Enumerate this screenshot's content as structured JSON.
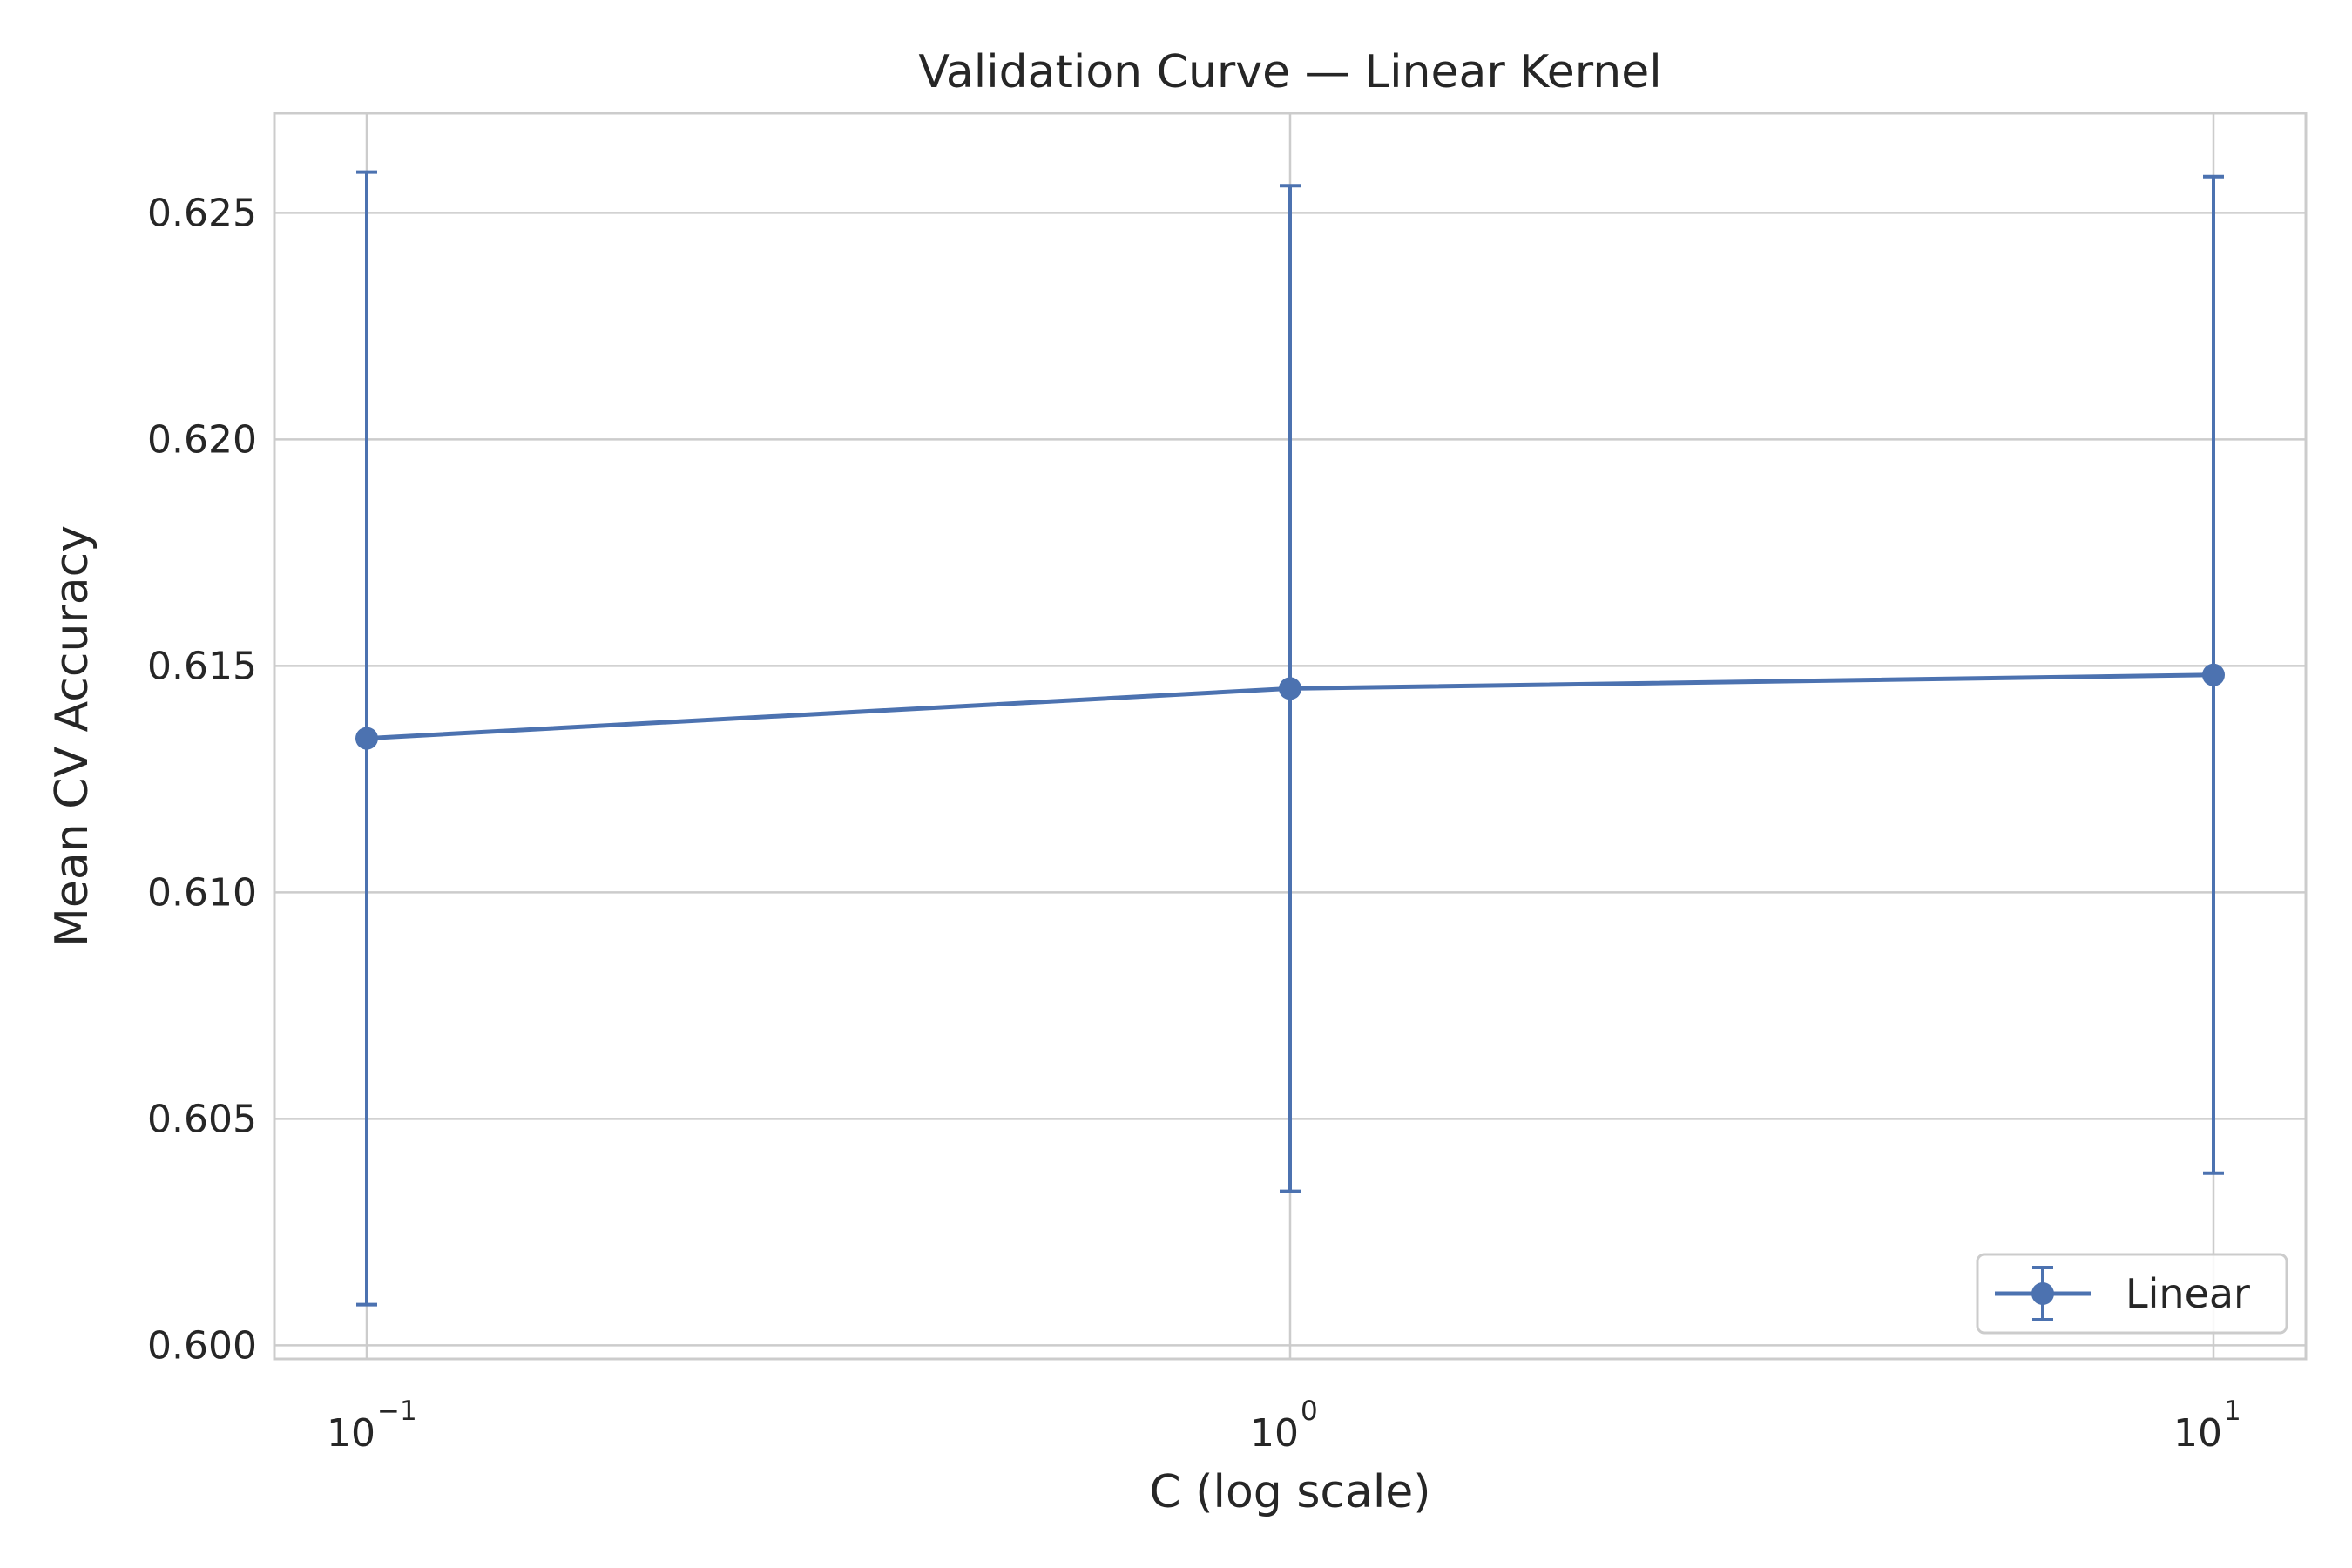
{
  "chart_data": {
    "type": "line",
    "title": "Validation Curve — Linear Kernel",
    "xlabel": "C (log scale)",
    "ylabel": "Mean CV Accuracy",
    "x_scale": "log",
    "x": [
      0.1,
      1,
      10
    ],
    "x_tick_labels": [
      {
        "base": "10",
        "exp": "−1"
      },
      {
        "base": "10",
        "exp": "0"
      },
      {
        "base": "10",
        "exp": "1"
      }
    ],
    "y_ticks": [
      "0.600",
      "0.605",
      "0.610",
      "0.615",
      "0.620",
      "0.625"
    ],
    "ylim": [
      0.5997,
      0.6272
    ],
    "grid": true,
    "legend_position": "lower right",
    "series": [
      {
        "name": "Linear",
        "color": "#4c72b0",
        "marker": "circle",
        "values": [
          0.6134,
          0.6145,
          0.6148
        ],
        "error": [
          0.0125,
          0.0111,
          0.011
        ]
      }
    ]
  }
}
